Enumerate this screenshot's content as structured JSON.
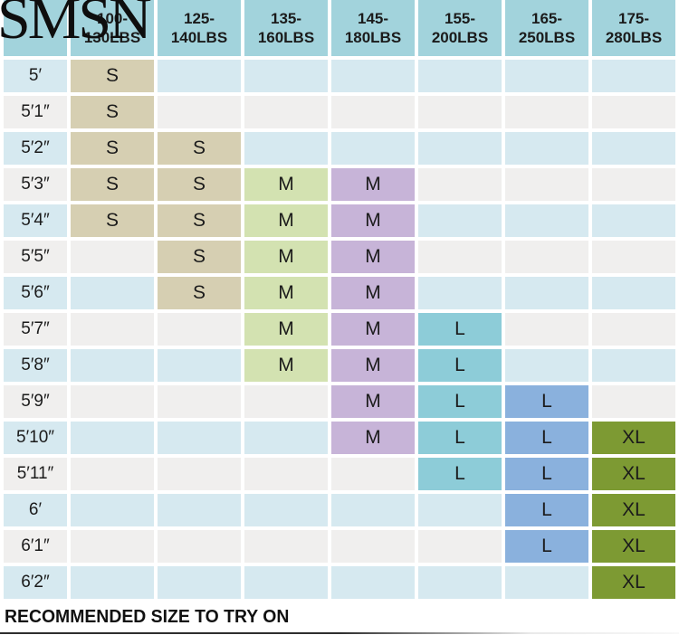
{
  "logo": {
    "text": "SMSN",
    "color": "#0e0e0e"
  },
  "footer": {
    "note": "RECOMMENDED SIZE TO TRY ON"
  },
  "chart_data": {
    "type": "table",
    "corner_label": "",
    "columns": [
      {
        "label_lines": [
          "100-",
          "130LBS"
        ],
        "fill": "#d6cfb2"
      },
      {
        "label_lines": [
          "125-",
          "140LBS"
        ],
        "fill": "#d6cfb2"
      },
      {
        "label_lines": [
          "135-",
          "160LBS"
        ],
        "fill": "#d3e2b1"
      },
      {
        "label_lines": [
          "145-",
          "180LBS"
        ],
        "fill": "#c7b4d8"
      },
      {
        "label_lines": [
          "155-",
          "200LBS"
        ],
        "fill": "#8dccd8"
      },
      {
        "label_lines": [
          "165-",
          "250LBS"
        ],
        "fill": "#8ab1dd"
      },
      {
        "label_lines": [
          "175-",
          "280LBS"
        ],
        "fill": "#7d9a33"
      }
    ],
    "rows": [
      {
        "height": "5′",
        "cells": [
          "S",
          "",
          "",
          "",
          "",
          "",
          ""
        ]
      },
      {
        "height": "5′1″",
        "cells": [
          "S",
          "",
          "",
          "",
          "",
          "",
          ""
        ]
      },
      {
        "height": "5′2″",
        "cells": [
          "S",
          "S",
          "",
          "",
          "",
          "",
          ""
        ]
      },
      {
        "height": "5′3″",
        "cells": [
          "S",
          "S",
          "M",
          "M",
          "",
          "",
          ""
        ]
      },
      {
        "height": "5′4″",
        "cells": [
          "S",
          "S",
          "M",
          "M",
          "",
          "",
          ""
        ]
      },
      {
        "height": "5′5″",
        "cells": [
          "",
          "S",
          "M",
          "M",
          "",
          "",
          ""
        ]
      },
      {
        "height": "5′6″",
        "cells": [
          "",
          "S",
          "M",
          "M",
          "",
          "",
          ""
        ]
      },
      {
        "height": "5′7″",
        "cells": [
          "",
          "",
          "M",
          "M",
          "L",
          "",
          ""
        ]
      },
      {
        "height": "5′8″",
        "cells": [
          "",
          "",
          "M",
          "M",
          "L",
          "",
          ""
        ]
      },
      {
        "height": "5′9″",
        "cells": [
          "",
          "",
          "",
          "M",
          "L",
          "L",
          ""
        ]
      },
      {
        "height": "5′10″",
        "cells": [
          "",
          "",
          "",
          "M",
          "L",
          "L",
          "XL"
        ]
      },
      {
        "height": "5′11″",
        "cells": [
          "",
          "",
          "",
          "",
          "L",
          "L",
          "XL"
        ]
      },
      {
        "height": "6′",
        "cells": [
          "",
          "",
          "",
          "",
          "",
          "L",
          "XL"
        ]
      },
      {
        "height": "6′1″",
        "cells": [
          "",
          "",
          "",
          "",
          "",
          "L",
          "XL"
        ]
      },
      {
        "height": "6′2″",
        "cells": [
          "",
          "",
          "",
          "",
          "",
          "",
          "XL"
        ]
      }
    ],
    "styles": {
      "header_bg": "#a2d3dc",
      "row_bg_even": "#d6e9f0",
      "row_bg_odd": "#f0efee",
      "text_color": "#1b1b1b"
    }
  }
}
